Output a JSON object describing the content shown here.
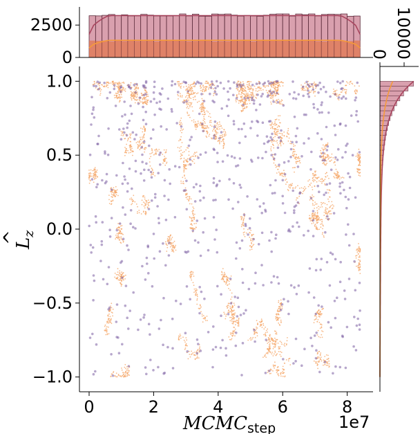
{
  "chart_data": {
    "type": "scatter",
    "subtype": "joint-plot with marginal histograms and KDE",
    "xlabel": "MCMC",
    "xlabel_subscript": "step",
    "ylabel": "L",
    "ylabel_subscript": "z",
    "x_offset_label": "1e7",
    "xlim": [
      -0.3,
      8.8
    ],
    "ylim": [
      -1.1,
      1.1
    ],
    "x_ticks": [
      {
        "value": 0,
        "label": "0"
      },
      {
        "value": 2,
        "label": "2"
      },
      {
        "value": 4,
        "label": "4"
      },
      {
        "value": 6,
        "label": "6"
      },
      {
        "value": 8,
        "label": "8"
      }
    ],
    "y_ticks": [
      {
        "value": 1.0,
        "label": "1.0"
      },
      {
        "value": 0.5,
        "label": "0.5"
      },
      {
        "value": 0.0,
        "label": "0.0"
      },
      {
        "value": -0.5,
        "label": "−0.5"
      },
      {
        "value": -1.0,
        "label": "−1.0"
      }
    ],
    "grid": false,
    "legend": "none",
    "series": [
      {
        "color": "#f5a86a",
        "marker": "small dot, dense trajectory",
        "x_range": [
          0,
          8.4
        ],
        "y_range": [
          -1.0,
          1.0
        ]
      },
      {
        "color": "#7b5fa3",
        "marker": "larger dot, sparse",
        "x_range": [
          0,
          8.4
        ],
        "y_range": [
          -1.0,
          1.0
        ]
      }
    ],
    "top_marginal": {
      "ylim": [
        0,
        3900
      ],
      "y_ticks": [
        {
          "value": 0,
          "label": "0"
        },
        {
          "value": 2500,
          "label": "2500"
        }
      ],
      "bins": 42,
      "histograms": [
        {
          "color": "#d9a0ae",
          "approx_count_per_bin": 3300
        },
        {
          "color": "#e07850",
          "approx_count_per_bin": 1300
        }
      ],
      "kde_colors": [
        "#a8455e",
        "#f59a3a"
      ]
    },
    "right_marginal": {
      "xlim": [
        0,
        16000
      ],
      "x_ticks": [
        {
          "value": 0,
          "label": "0"
        },
        {
          "value": 10000,
          "label": "10000"
        }
      ],
      "distribution": "increasing sharply toward L_z = 1",
      "peak_count_approx": 14500,
      "histogram_color": "#d9a0ae",
      "kde_colors": [
        "#a8455e",
        "#f59a3a"
      ]
    },
    "colors": {
      "scatter_dense": "#f5a86a",
      "scatter_sparse": "#7b5fa3",
      "hist_fill": "#d9a0ae",
      "hist_edge": "#5a2a3a",
      "hist_inner": "#e07850",
      "kde_outer": "#a8455e",
      "kde_inner": "#f59a3a"
    }
  }
}
